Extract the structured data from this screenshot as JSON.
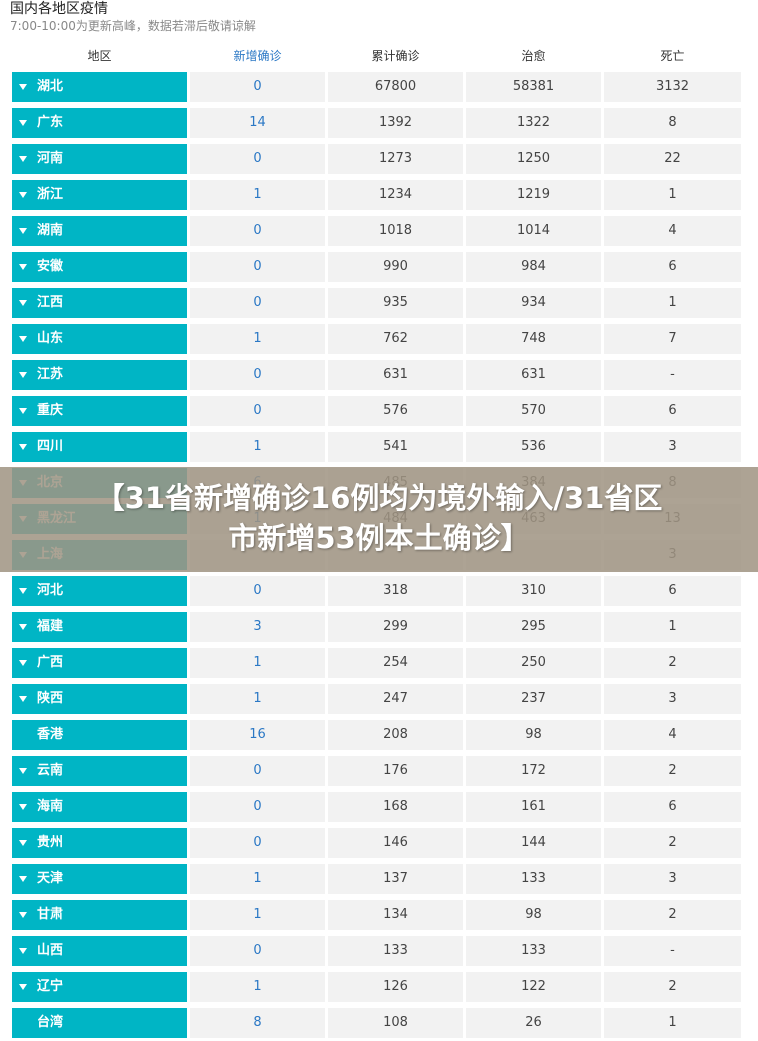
{
  "page": {
    "title": "国内各地区疫情",
    "subtitle": "7:00-10:00为更新高峰，数据若滞后敬请谅解"
  },
  "table": {
    "headers": {
      "region": "地区",
      "new_confirmed": "新增确诊",
      "total_confirmed": "累计确诊",
      "cured": "治愈",
      "deaths": "死亡"
    },
    "rows": [
      {
        "name": "湖北",
        "new": "0",
        "total": "67800",
        "cured": "58381",
        "deaths": "3132",
        "expandable": true
      },
      {
        "name": "广东",
        "new": "14",
        "total": "1392",
        "cured": "1322",
        "deaths": "8",
        "expandable": true
      },
      {
        "name": "河南",
        "new": "0",
        "total": "1273",
        "cured": "1250",
        "deaths": "22",
        "expandable": true
      },
      {
        "name": "浙江",
        "new": "1",
        "total": "1234",
        "cured": "1219",
        "deaths": "1",
        "expandable": true
      },
      {
        "name": "湖南",
        "new": "0",
        "total": "1018",
        "cured": "1014",
        "deaths": "4",
        "expandable": true
      },
      {
        "name": "安徽",
        "new": "0",
        "total": "990",
        "cured": "984",
        "deaths": "6",
        "expandable": true
      },
      {
        "name": "江西",
        "new": "0",
        "total": "935",
        "cured": "934",
        "deaths": "1",
        "expandable": true
      },
      {
        "name": "山东",
        "new": "1",
        "total": "762",
        "cured": "748",
        "deaths": "7",
        "expandable": true
      },
      {
        "name": "江苏",
        "new": "0",
        "total": "631",
        "cured": "631",
        "deaths": "-",
        "expandable": true
      },
      {
        "name": "重庆",
        "new": "0",
        "total": "576",
        "cured": "570",
        "deaths": "6",
        "expandable": true
      },
      {
        "name": "四川",
        "new": "1",
        "total": "541",
        "cured": "536",
        "deaths": "3",
        "expandable": true
      },
      {
        "name": "北京",
        "new": "6",
        "total": "485",
        "cured": "384",
        "deaths": "8",
        "expandable": true
      },
      {
        "name": "黑龙江",
        "new": "1",
        "total": "484",
        "cured": "463",
        "deaths": "13",
        "expandable": true
      },
      {
        "name": "上海",
        "new": "",
        "total": "",
        "cured": "",
        "deaths": "3",
        "expandable": true
      },
      {
        "name": "河北",
        "new": "0",
        "total": "318",
        "cured": "310",
        "deaths": "6",
        "expandable": true
      },
      {
        "name": "福建",
        "new": "3",
        "total": "299",
        "cured": "295",
        "deaths": "1",
        "expandable": true
      },
      {
        "name": "广西",
        "new": "1",
        "total": "254",
        "cured": "250",
        "deaths": "2",
        "expandable": true
      },
      {
        "name": "陕西",
        "new": "1",
        "total": "247",
        "cured": "237",
        "deaths": "3",
        "expandable": true
      },
      {
        "name": "香港",
        "new": "16",
        "total": "208",
        "cured": "98",
        "deaths": "4",
        "expandable": false
      },
      {
        "name": "云南",
        "new": "0",
        "total": "176",
        "cured": "172",
        "deaths": "2",
        "expandable": true
      },
      {
        "name": "海南",
        "new": "0",
        "total": "168",
        "cured": "161",
        "deaths": "6",
        "expandable": true
      },
      {
        "name": "贵州",
        "new": "0",
        "total": "146",
        "cured": "144",
        "deaths": "2",
        "expandable": true
      },
      {
        "name": "天津",
        "new": "1",
        "total": "137",
        "cured": "133",
        "deaths": "3",
        "expandable": true
      },
      {
        "name": "甘肃",
        "new": "1",
        "total": "134",
        "cured": "98",
        "deaths": "2",
        "expandable": true
      },
      {
        "name": "山西",
        "new": "0",
        "total": "133",
        "cured": "133",
        "deaths": "-",
        "expandable": true
      },
      {
        "name": "辽宁",
        "new": "1",
        "total": "126",
        "cured": "122",
        "deaths": "2",
        "expandable": true
      },
      {
        "name": "台湾",
        "new": "8",
        "total": "108",
        "cured": "26",
        "deaths": "1",
        "expandable": false
      }
    ]
  },
  "banner": {
    "line1": "【31省新增确诊16例均为境外输入/31省区",
    "line2": "市新增53例本土确诊】"
  },
  "colors": {
    "region_bg": "#00b5c5",
    "cell_bg": "#f2f2f2",
    "new_value_text": "#2b78c5",
    "banner_overlay": "#a09482"
  },
  "icons": {
    "expand": "caret-down-icon"
  }
}
